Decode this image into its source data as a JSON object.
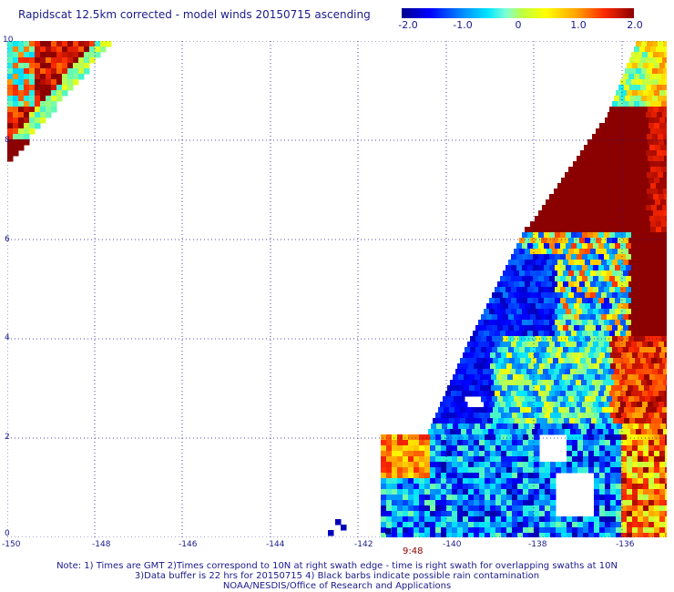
{
  "title": "Rapidscat 12.5km corrected - model winds 20150715 ascending",
  "colorbar": {
    "ticks": [
      "-2.0",
      "-1.0",
      "0",
      "1.0",
      "2.0"
    ],
    "min": -2.0,
    "max": 2.0
  },
  "map": {
    "x_ticks": [
      "-150",
      "-148",
      "-146",
      "-144",
      "-142",
      "-140",
      "-138",
      "-136"
    ],
    "y_ticks": [
      "0",
      "2",
      "4",
      "6",
      "8",
      "10"
    ],
    "lon_range": [
      -150,
      -134.8
    ],
    "lat_range": [
      0,
      10
    ],
    "swath_time_label": "9:48"
  },
  "notes": {
    "line1": "Note: 1) Times are GMT 2)Times correspond to 10N at right swath edge - time is right swath for overlapping swaths at 10N",
    "line2": "3)Data buffer is 22 hrs for 20150715 4) Black barbs indicate possible rain contamination",
    "line3": "NOAA/NESDIS/Office of Research and Applications"
  }
}
